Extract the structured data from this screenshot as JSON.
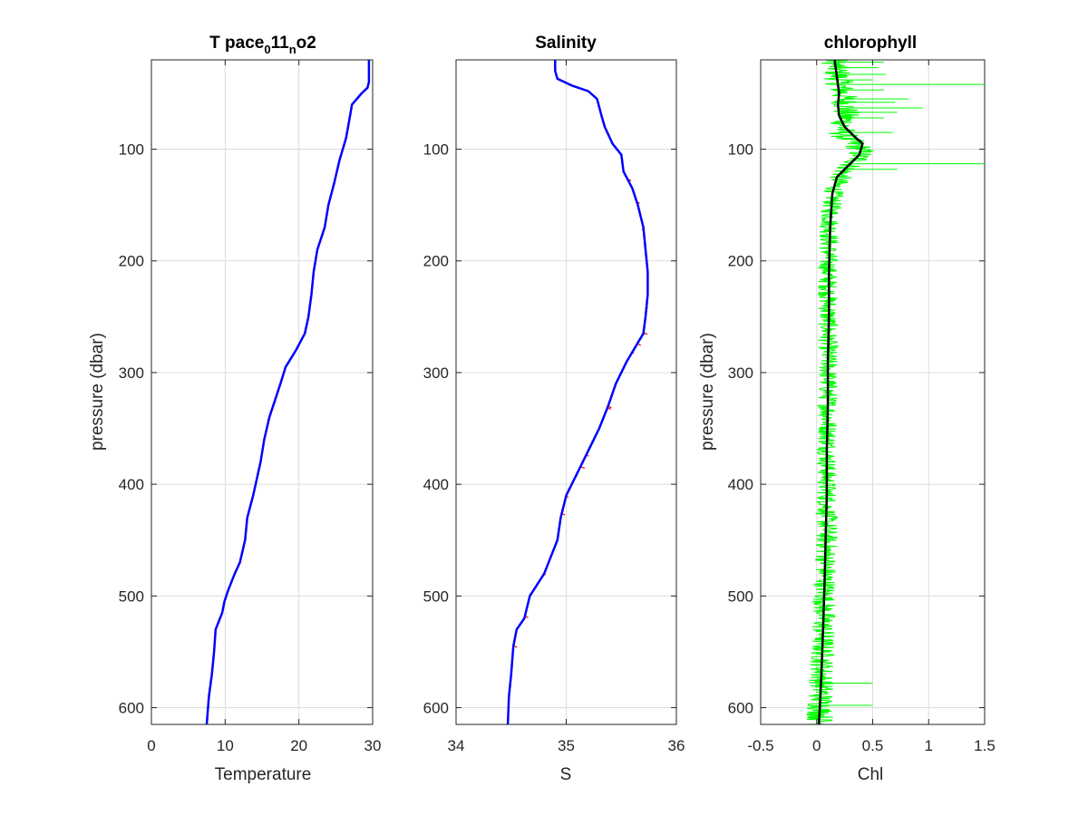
{
  "chart_data": [
    {
      "type": "line",
      "title": {
        "base": "T pace",
        "sub1": "0",
        "mid": "11",
        "sub2": "n",
        "tail": "o2"
      },
      "xlabel": "Temperature",
      "ylabel": "pressure (dbar)",
      "xlim": [
        0,
        30
      ],
      "ylim": [
        615,
        20
      ],
      "y_reversed": true,
      "grid": true,
      "xticks": [
        0,
        10,
        20,
        30
      ],
      "yticks": [
        100,
        200,
        300,
        400,
        500,
        600
      ],
      "series": [
        {
          "color": "#0000ff",
          "x": [
            29.5,
            29.5,
            29.3,
            28.5,
            27.2,
            26.8,
            26.4,
            25.5,
            24.8,
            24.0,
            23.5,
            22.5,
            22.0,
            21.7,
            21.3,
            20.8,
            19.6,
            18.2,
            17.5,
            16.0,
            15.3,
            14.8,
            13.8,
            13.0,
            12.7,
            12.0,
            11.3,
            10.4,
            9.9,
            9.6,
            8.7,
            8.5,
            8.2,
            7.8,
            7.5
          ],
          "y": [
            20,
            40,
            45,
            50,
            60,
            75,
            90,
            110,
            130,
            150,
            170,
            190,
            210,
            230,
            250,
            265,
            280,
            295,
            310,
            340,
            360,
            380,
            410,
            430,
            450,
            470,
            480,
            495,
            505,
            515,
            530,
            550,
            570,
            590,
            615
          ]
        }
      ]
    },
    {
      "type": "line",
      "title": "Salinity",
      "xlabel": "S",
      "xlim": [
        34,
        36
      ],
      "ylim": [
        615,
        20
      ],
      "y_reversed": true,
      "grid": true,
      "xticks": [
        34,
        35,
        36
      ],
      "yticks": [
        100,
        200,
        300,
        400,
        500,
        600
      ],
      "series": [
        {
          "color": "#ff0000",
          "x": [
            34.9,
            34.9,
            34.92,
            35.05,
            35.2,
            35.28,
            35.32,
            35.35,
            35.42,
            35.5,
            35.52,
            35.6,
            35.65,
            35.7,
            35.72,
            35.74,
            35.74,
            35.72,
            35.7,
            35.55,
            35.45,
            35.38,
            35.3,
            35.2,
            35.1,
            35.0,
            34.95,
            34.92,
            34.8,
            34.67,
            34.62,
            34.55,
            34.52,
            34.5,
            34.48,
            34.47
          ],
          "y": [
            20,
            30,
            37,
            43,
            48,
            55,
            70,
            80,
            95,
            105,
            120,
            135,
            150,
            170,
            190,
            210,
            230,
            250,
            265,
            290,
            310,
            330,
            350,
            370,
            390,
            410,
            430,
            450,
            480,
            500,
            520,
            530,
            545,
            570,
            590,
            615
          ]
        },
        {
          "color": "#0000ff",
          "x": [
            34.9,
            34.9,
            34.92,
            35.05,
            35.2,
            35.28,
            35.32,
            35.35,
            35.42,
            35.5,
            35.52,
            35.6,
            35.65,
            35.7,
            35.72,
            35.74,
            35.74,
            35.72,
            35.7,
            35.55,
            35.45,
            35.38,
            35.3,
            35.2,
            35.1,
            35.0,
            34.95,
            34.92,
            34.8,
            34.67,
            34.62,
            34.55,
            34.52,
            34.5,
            34.48,
            34.47
          ],
          "y": [
            20,
            30,
            37,
            43,
            48,
            55,
            70,
            80,
            95,
            105,
            120,
            135,
            150,
            170,
            190,
            210,
            230,
            250,
            265,
            290,
            310,
            330,
            350,
            370,
            390,
            410,
            430,
            450,
            480,
            500,
            520,
            530,
            545,
            570,
            590,
            615
          ]
        }
      ]
    },
    {
      "type": "line",
      "title": "chlorophyll",
      "xlabel": "Chl",
      "ylabel": "pressure (dbar)",
      "xlim": [
        -0.5,
        1.5
      ],
      "ylim": [
        615,
        20
      ],
      "y_reversed": true,
      "grid": true,
      "xticks": [
        -0.5,
        0,
        0.5,
        1,
        1.5
      ],
      "xticklabels": [
        "-0.5",
        "0",
        "0.5",
        "1",
        "1.5"
      ],
      "yticks": [
        100,
        200,
        300,
        400,
        500,
        600
      ],
      "series": [
        {
          "name_hidden": true,
          "color": "#00ff00",
          "style": "noisy",
          "x": [
            0.16,
            0.2,
            0.26,
            0.25,
            0.22,
            0.26,
            0.4,
            0.36,
            0.24,
            0.16,
            0.12,
            0.1,
            0.1,
            0.1,
            0.1,
            0.09,
            0.09,
            0.08,
            0.06,
            0.05,
            0.04,
            0.03
          ],
          "y": [
            20,
            40,
            60,
            75,
            85,
            90,
            100,
            110,
            120,
            135,
            160,
            200,
            250,
            300,
            350,
            400,
            440,
            480,
            520,
            560,
            590,
            615
          ],
          "spread": [
            0.13,
            0.13,
            0.13,
            0.13,
            0.13,
            0.13,
            0.13,
            0.12,
            0.11,
            0.09,
            0.09,
            0.09,
            0.09,
            0.09,
            0.09,
            0.09,
            0.1,
            0.1,
            0.11,
            0.11,
            0.12,
            0.13
          ],
          "spikes": [
            {
              "y": 22,
              "x": 0.6
            },
            {
              "y": 27,
              "x": 0.55
            },
            {
              "y": 33,
              "x": 0.62
            },
            {
              "y": 38,
              "x": 0.5
            },
            {
              "y": 42,
              "x": 1.5
            },
            {
              "y": 47,
              "x": 0.6
            },
            {
              "y": 55,
              "x": 0.82
            },
            {
              "y": 58,
              "x": 0.7
            },
            {
              "y": 63,
              "x": 0.95
            },
            {
              "y": 67,
              "x": 0.72
            },
            {
              "y": 72,
              "x": 0.6
            },
            {
              "y": 85,
              "x": 0.68
            },
            {
              "y": 113,
              "x": 1.5
            },
            {
              "y": 118,
              "x": 0.72
            },
            {
              "y": 578,
              "x": 0.5
            },
            {
              "y": 598,
              "x": 0.5
            }
          ]
        },
        {
          "color": "#000000",
          "x": [
            0.16,
            0.18,
            0.2,
            0.19,
            0.2,
            0.25,
            0.33,
            0.41,
            0.38,
            0.28,
            0.18,
            0.14,
            0.12,
            0.11,
            0.11,
            0.1,
            0.1,
            0.09,
            0.09,
            0.08,
            0.07,
            0.06,
            0.05,
            0.04,
            0.03,
            0.02
          ],
          "y": [
            20,
            35,
            50,
            60,
            70,
            80,
            88,
            95,
            105,
            115,
            125,
            140,
            170,
            210,
            250,
            290,
            330,
            370,
            410,
            450,
            490,
            520,
            550,
            575,
            595,
            615
          ]
        }
      ]
    }
  ]
}
